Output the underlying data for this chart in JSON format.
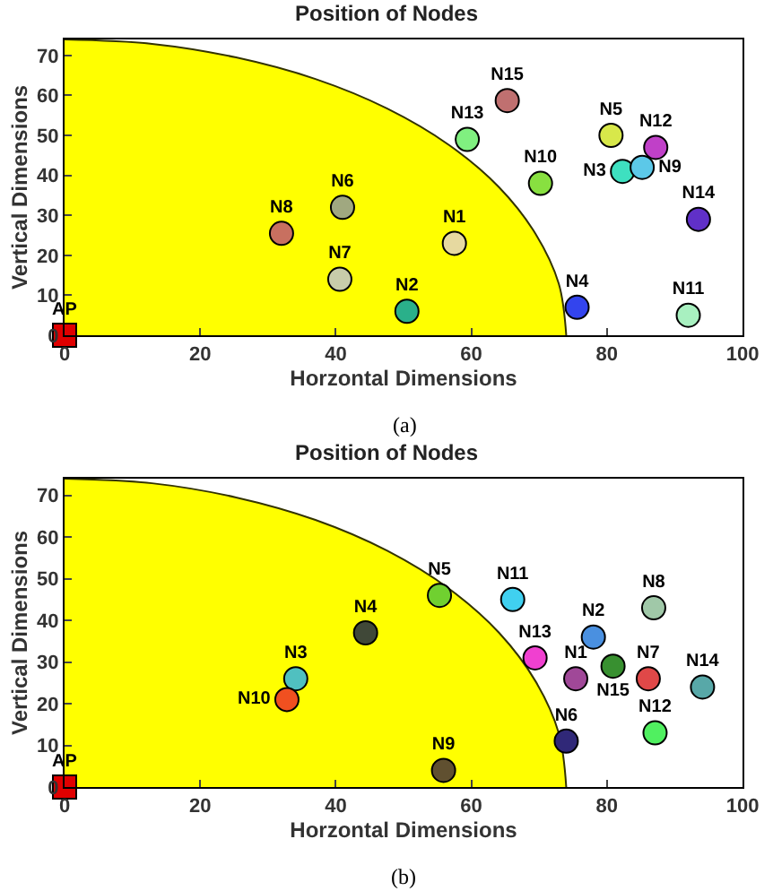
{
  "chart_data": [
    {
      "type": "scatter",
      "title": "Position of Nodes",
      "xlabel": "Horzontal Dimensions",
      "ylabel": "Vertical Dimensions",
      "annotations": [
        "(a)"
      ],
      "xlim": [
        0,
        100
      ],
      "ylim": [
        0,
        74
      ],
      "xticks": [
        0,
        20,
        40,
        60,
        80,
        100
      ],
      "yticks": [
        0,
        10,
        20,
        30,
        40,
        50,
        60,
        70
      ],
      "grid": false,
      "legend": false,
      "marker": "circle",
      "series": [
        {
          "type": "area",
          "marker": "none",
          "color": "#ffff00",
          "x": [
            0,
            12.9,
            25.3,
            37,
            47.6,
            56.7,
            64.1,
            69.5,
            72.9,
            74
          ],
          "values": [
            74,
            72.9,
            69.5,
            64.1,
            56.7,
            47.6,
            37,
            25.3,
            12.9,
            0
          ]
        },
        {
          "name": "AP",
          "marker": "square",
          "color": "#e00000",
          "x": [
            0
          ],
          "values": [
            0
          ]
        },
        {
          "name": "N1",
          "color": "#e6d9a0",
          "x": [
            57.5
          ],
          "values": [
            23
          ]
        },
        {
          "name": "N2",
          "color": "#2ab08a",
          "x": [
            50.5
          ],
          "values": [
            6
          ]
        },
        {
          "name": "N3",
          "color": "#3ee0c0",
          "x": [
            82.3
          ],
          "values": [
            41
          ]
        },
        {
          "name": "N4",
          "color": "#3344ee",
          "x": [
            75.6
          ],
          "values": [
            7
          ]
        },
        {
          "name": "N5",
          "color": "#d8e84a",
          "x": [
            80.6
          ],
          "values": [
            50
          ]
        },
        {
          "name": "N6",
          "color": "#a0a880",
          "x": [
            41
          ],
          "values": [
            32
          ]
        },
        {
          "name": "N7",
          "color": "#c8ccaa",
          "x": [
            40.6
          ],
          "values": [
            14
          ]
        },
        {
          "name": "N8",
          "color": "#c87060",
          "x": [
            32
          ],
          "values": [
            25.5
          ]
        },
        {
          "name": "N9",
          "color": "#5cc8e8",
          "x": [
            85.2
          ],
          "values": [
            42
          ]
        },
        {
          "name": "N10",
          "color": "#88e040",
          "x": [
            70.2
          ],
          "values": [
            38
          ]
        },
        {
          "name": "N11",
          "color": "#a8f0c0",
          "x": [
            92
          ],
          "values": [
            5
          ]
        },
        {
          "name": "N12",
          "color": "#c040c8",
          "x": [
            87.2
          ],
          "values": [
            47
          ]
        },
        {
          "name": "N13",
          "color": "#80f080",
          "x": [
            59.4
          ],
          "values": [
            49
          ]
        },
        {
          "name": "N14",
          "color": "#6030c8",
          "x": [
            93.5
          ],
          "values": [
            29
          ]
        },
        {
          "name": "N15",
          "color": "#c07070",
          "x": [
            65.3
          ],
          "values": [
            58.7
          ]
        }
      ]
    },
    {
      "type": "scatter",
      "title": "Position of Nodes",
      "xlabel": "Horzontal Dimensions",
      "ylabel": "Vertical Dimensions",
      "annotations": [
        "(b)"
      ],
      "xlim": [
        0,
        100
      ],
      "ylim": [
        0,
        74
      ],
      "xticks": [
        0,
        20,
        40,
        60,
        80,
        100
      ],
      "yticks": [
        0,
        10,
        20,
        30,
        40,
        50,
        60,
        70
      ],
      "grid": false,
      "legend": false,
      "marker": "circle",
      "series": [
        {
          "type": "area",
          "marker": "none",
          "color": "#ffff00",
          "x": [
            0,
            12.9,
            25.3,
            37,
            47.6,
            56.7,
            64.1,
            69.5,
            72.9,
            74
          ],
          "values": [
            74,
            72.9,
            69.5,
            64.1,
            56.7,
            47.6,
            37,
            25.3,
            12.9,
            0
          ]
        },
        {
          "name": "AP",
          "marker": "square",
          "color": "#e00000",
          "x": [
            0
          ],
          "values": [
            0
          ]
        },
        {
          "name": "N1",
          "color": "#a04898",
          "x": [
            75.4
          ],
          "values": [
            26
          ]
        },
        {
          "name": "N2",
          "color": "#4a90e0",
          "x": [
            78
          ],
          "values": [
            36
          ]
        },
        {
          "name": "N3",
          "color": "#50c0c0",
          "x": [
            34.1
          ],
          "values": [
            26
          ]
        },
        {
          "name": "N4",
          "color": "#404838",
          "x": [
            44.4
          ],
          "values": [
            37
          ]
        },
        {
          "name": "N5",
          "color": "#70d030",
          "x": [
            55.3
          ],
          "values": [
            46
          ]
        },
        {
          "name": "N6",
          "color": "#302878",
          "x": [
            74
          ],
          "values": [
            11
          ]
        },
        {
          "name": "N7",
          "color": "#e04848",
          "x": [
            86.1
          ],
          "values": [
            26
          ]
        },
        {
          "name": "N8",
          "color": "#a0c8a8",
          "x": [
            86.9
          ],
          "values": [
            43
          ]
        },
        {
          "name": "N9",
          "color": "#605030",
          "x": [
            55.9
          ],
          "values": [
            4
          ]
        },
        {
          "name": "N10",
          "color": "#f05020",
          "x": [
            32.8
          ],
          "values": [
            21
          ]
        },
        {
          "name": "N11",
          "color": "#40d0f0",
          "x": [
            66.1
          ],
          "values": [
            45
          ]
        },
        {
          "name": "N12",
          "color": "#50f060",
          "x": [
            87.1
          ],
          "values": [
            13
          ]
        },
        {
          "name": "N13",
          "color": "#f040d0",
          "x": [
            69.4
          ],
          "values": [
            31
          ]
        },
        {
          "name": "N14",
          "color": "#58a8a8",
          "x": [
            94.1
          ],
          "values": [
            24
          ]
        },
        {
          "name": "N15",
          "color": "#389030",
          "x": [
            80.9
          ],
          "values": [
            29
          ]
        }
      ]
    }
  ]
}
